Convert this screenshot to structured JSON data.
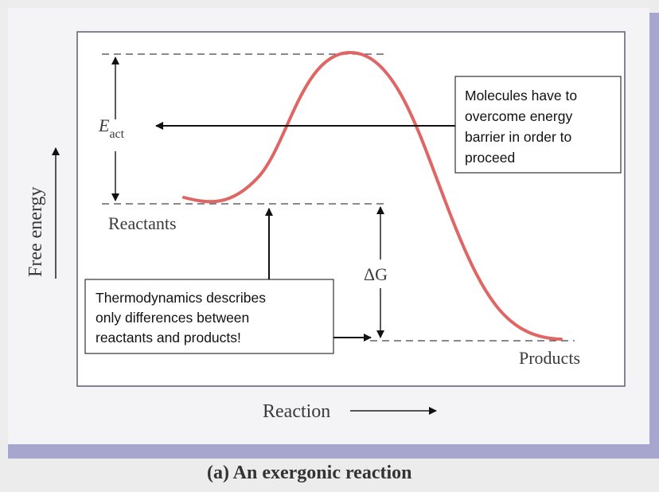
{
  "diagram": {
    "y_axis_label": "Free energy",
    "x_axis_label": "Reaction",
    "activation_energy_label": {
      "symbol": "E",
      "subscript": "act"
    },
    "delta_g_label": "ΔG",
    "reactants_label": "Reactants",
    "products_label": "Products",
    "caption": "(a) An exergonic reaction",
    "callout_energy_barrier": [
      "Molecules have to",
      "overcome energy",
      "barrier in order to",
      "proceed"
    ],
    "callout_thermodynamics": [
      "Thermodynamics describes",
      "only differences between",
      "reactants and products!"
    ],
    "colors": {
      "curve": "#e06666",
      "frame_border": "#5d5d6e",
      "shadow_band": "#a7a6cf",
      "plot_background": "#ffffff"
    }
  }
}
